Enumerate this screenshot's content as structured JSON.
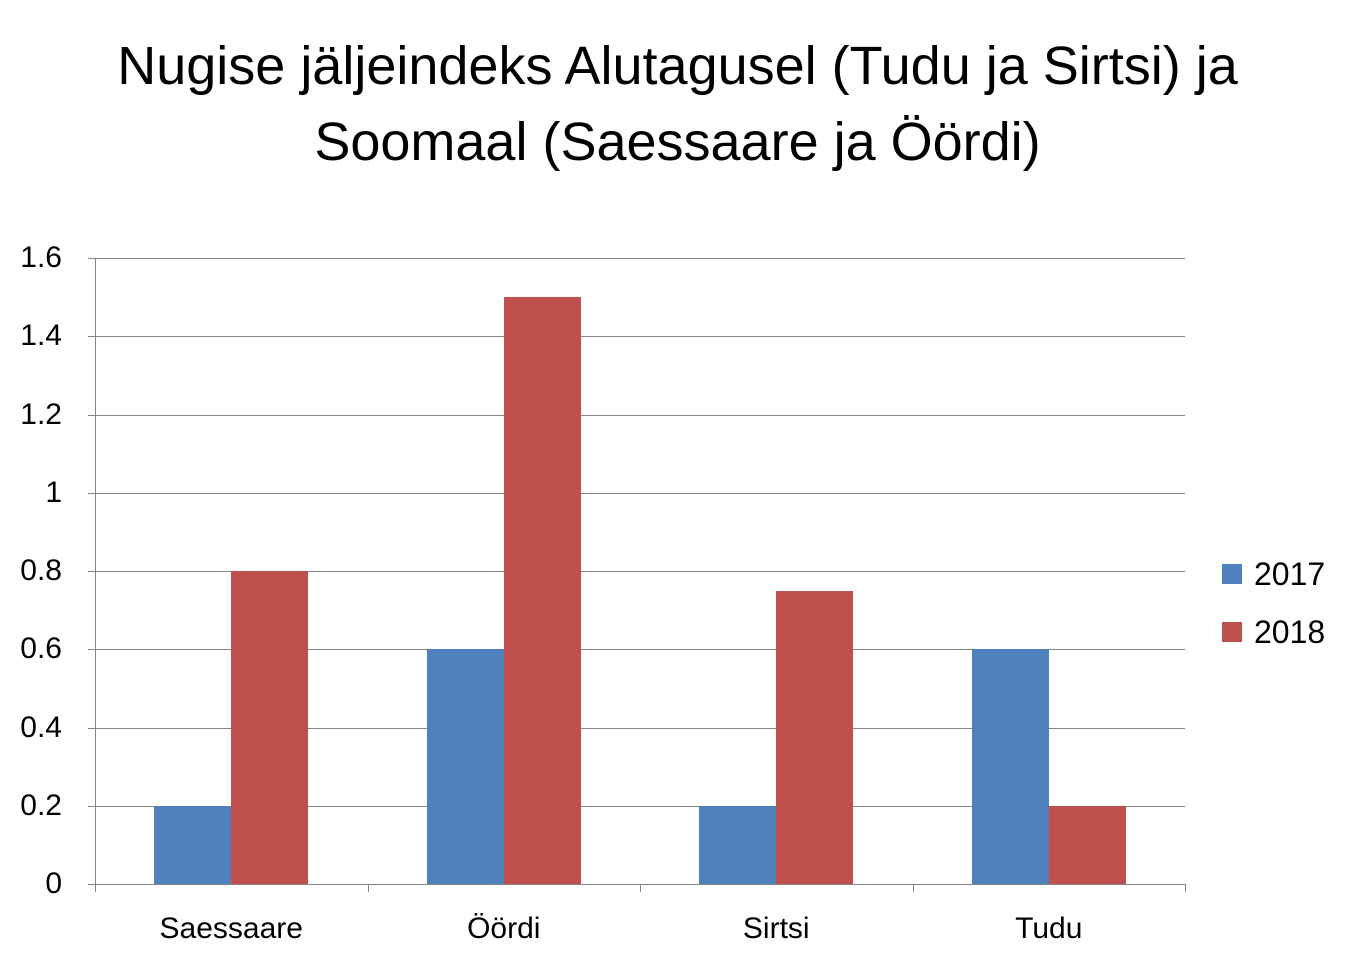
{
  "chart_data": {
    "type": "bar",
    "title": "Nugise jäljeindeks Alutagusel (Tudu ja Sirtsi) ja Soomaal (Saessaare ja Öördi)",
    "title_lines": [
      "Nugise jäljeindeks Alutagusel (Tudu ja Sirtsi) ja",
      "Soomaal (Saessaare ja Öördi)"
    ],
    "categories": [
      "Saessaare",
      "Öördi",
      "Sirtsi",
      "Tudu"
    ],
    "series": [
      {
        "name": "2017",
        "color": "#4f81bd",
        "values": [
          0.2,
          0.6,
          0.2,
          0.6
        ]
      },
      {
        "name": "2018",
        "color": "#c0504d",
        "values": [
          0.8,
          1.5,
          0.75,
          0.2
        ]
      }
    ],
    "xlabel": "",
    "ylabel": "",
    "ylim": [
      0,
      1.6
    ],
    "yticks": [
      "0",
      "0.2",
      "0.4",
      "0.6",
      "0.8",
      "1",
      "1.2",
      "1.4",
      "1.6"
    ],
    "grid": true,
    "legend_position": "right"
  }
}
